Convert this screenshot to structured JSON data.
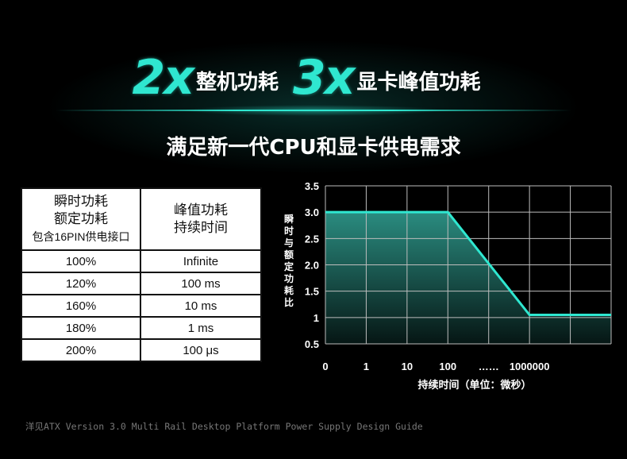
{
  "headline": {
    "mult1": "2x",
    "text1": "整机功耗",
    "mult2": "3x",
    "text2": "显卡峰值功耗"
  },
  "subtitle": "满足新一代CPU和显卡供电需求",
  "table": {
    "header_left": [
      "瞬时功耗",
      "额定功耗"
    ],
    "header_left_small": "包含16PIN供电接口",
    "header_right": [
      "峰值功耗",
      "持续时间"
    ],
    "rows": [
      {
        "load": "100%",
        "duration": "Infinite"
      },
      {
        "load": "120%",
        "duration": "100 ms"
      },
      {
        "load": "160%",
        "duration": "10 ms"
      },
      {
        "load": "180%",
        "duration": "1 ms"
      },
      {
        "load": "200%",
        "duration": "100 μs"
      }
    ]
  },
  "chart_data": {
    "type": "area",
    "title": "",
    "xlabel": "持续时间（单位：微秒）",
    "ylabel": "瞬时与额定功耗比",
    "x_tick_labels": [
      "0",
      "1",
      "10",
      "100",
      "……",
      "1000000",
      ""
    ],
    "y_ticks": [
      0.5,
      1,
      1.5,
      2.0,
      2.5,
      3.0,
      3.5
    ],
    "y_tick_labels": [
      "0.5",
      "1",
      "1.5",
      "2.0",
      "2.5",
      "3.0",
      "3.5"
    ],
    "ylim": [
      0.5,
      3.5
    ],
    "grid": true,
    "x": [
      "0",
      "100",
      "1000000",
      ""
    ],
    "y": [
      3.0,
      3.0,
      1.05,
      1.05
    ],
    "colors": {
      "line": "#2fe7d0",
      "fill_top": "#2a8c80",
      "fill_bottom": "#061614",
      "grid": "#bdbdbd"
    }
  },
  "footer": "洋见ATX Version 3.0 Multi Rail Desktop Platform Power Supply Design Guide"
}
